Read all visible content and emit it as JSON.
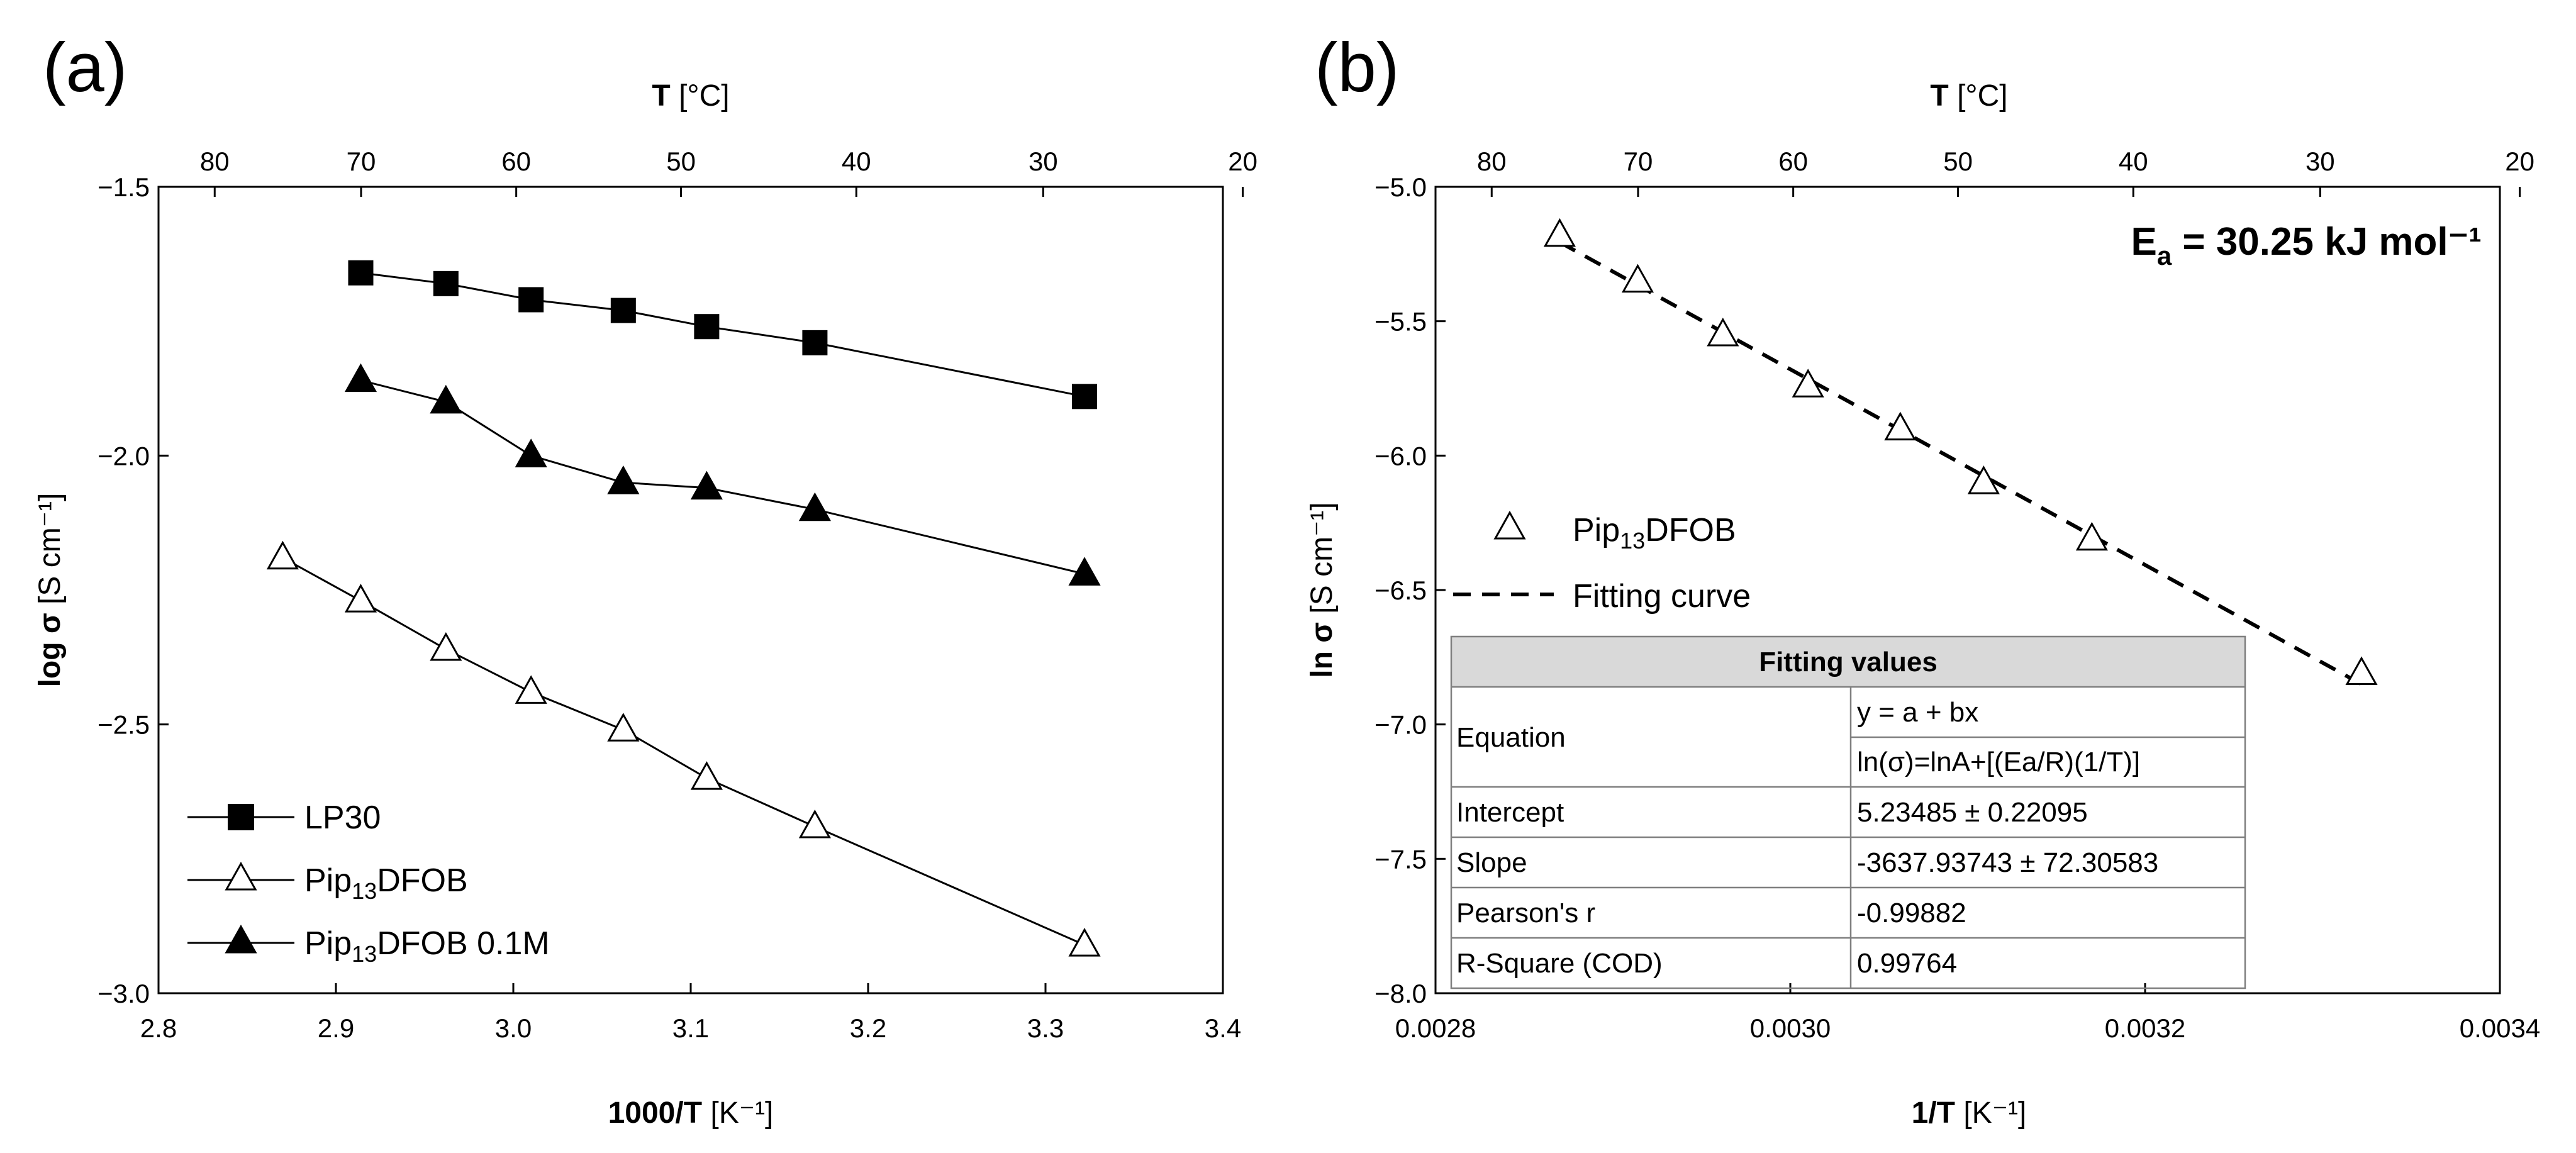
{
  "figure": {
    "panel_a_label": "(a)",
    "panel_b_label": "(b)"
  },
  "chart_data": [
    {
      "type": "line",
      "panel": "a",
      "xlabel_bold": "1000/T",
      "xlabel_unit": "[K⁻¹]",
      "ylabel_bold": "log σ",
      "ylabel_unit": "[S cm⁻¹]",
      "top_xlabel_bold": "T",
      "top_xlabel_unit": "[°C]",
      "xlim": [
        2.8,
        3.4
      ],
      "ylim": [
        -3.0,
        -1.5
      ],
      "x_ticks": [
        2.8,
        2.9,
        3.0,
        3.1,
        3.2,
        3.3,
        3.4
      ],
      "x_tick_labels": [
        "2.8",
        "2.9",
        "3.0",
        "3.1",
        "3.2",
        "3.3",
        "3.4"
      ],
      "y_ticks": [
        -3.0,
        -2.5,
        -2.0,
        -1.5
      ],
      "y_tick_labels": [
        "−3.0",
        "−2.5",
        "−2.0",
        "−1.5"
      ],
      "top_ticks_celsius": [
        80,
        70,
        60,
        50,
        40,
        30,
        20
      ],
      "top_tick_labels": [
        "80",
        "70",
        "60",
        "50",
        "40",
        "30",
        "20"
      ],
      "legend_position": "bottom-left",
      "series": [
        {
          "name": "LP30",
          "name_main": "LP30",
          "name_sub": "",
          "name_tail": "",
          "marker": "square-filled",
          "x": [
            2.914,
            2.962,
            3.01,
            3.062,
            3.109,
            3.17,
            3.322
          ],
          "y": [
            -1.66,
            -1.68,
            -1.71,
            -1.73,
            -1.76,
            -1.79,
            -1.89
          ]
        },
        {
          "name": "Pip13DFOB",
          "name_main": "Pip",
          "name_sub": "13",
          "name_tail": "DFOB",
          "marker": "triangle-open",
          "x": [
            2.87,
            2.914,
            2.962,
            3.01,
            3.062,
            3.109,
            3.17,
            3.322
          ],
          "y": [
            -2.19,
            -2.27,
            -2.36,
            -2.44,
            -2.51,
            -2.6,
            -2.69,
            -2.91
          ]
        },
        {
          "name": "Pip13DFOB 0.1M",
          "name_main": "Pip",
          "name_sub": "13",
          "name_tail": "DFOB 0.1M",
          "marker": "triangle-filled",
          "x": [
            2.914,
            2.962,
            3.01,
            3.062,
            3.109,
            3.17,
            3.322
          ],
          "y": [
            -1.86,
            -1.9,
            -2.0,
            -2.05,
            -2.06,
            -2.1,
            -2.22
          ]
        }
      ]
    },
    {
      "type": "scatter",
      "panel": "b",
      "xlabel_bold": "1/T",
      "xlabel_unit": "[K⁻¹]",
      "ylabel_bold": "ln σ",
      "ylabel_unit": "[S cm⁻¹]",
      "top_xlabel_bold": "T",
      "top_xlabel_unit": "[°C]",
      "xlim": [
        0.0028,
        0.0034
      ],
      "ylim": [
        -8.0,
        -5.0
      ],
      "x_ticks": [
        0.0028,
        0.003,
        0.0032,
        0.0034
      ],
      "x_tick_labels": [
        "0.0028",
        "0.0030",
        "0.0032",
        "0.0034"
      ],
      "y_ticks": [
        -8.0,
        -7.5,
        -7.0,
        -6.5,
        -6.0,
        -5.5,
        -5.0
      ],
      "y_tick_labels": [
        "−8.0",
        "−7.5",
        "−7.0",
        "−6.5",
        "−6.0",
        "−5.5",
        "−5.0"
      ],
      "top_ticks_celsius": [
        80,
        70,
        60,
        50,
        40,
        30,
        20
      ],
      "top_tick_labels": [
        "80",
        "70",
        "60",
        "50",
        "40",
        "30",
        "20"
      ],
      "annotation_main": "E",
      "annotation_sub": "a",
      "annotation_tail": " = 30.25 kJ mol⁻¹",
      "legend_position": "middle-left",
      "series": [
        {
          "name": "Pip13DFOB",
          "name_main": "Pip",
          "name_sub": "13",
          "name_tail": "DFOB",
          "marker": "triangle-open",
          "x": [
            0.00287,
            0.002914,
            0.002962,
            0.00301,
            0.003062,
            0.003109,
            0.00317,
            0.003322
          ],
          "y": [
            -5.18,
            -5.35,
            -5.55,
            -5.74,
            -5.9,
            -6.1,
            -6.31,
            -6.81
          ]
        }
      ],
      "fit": {
        "name": "Fitting curve",
        "intercept": 5.23485,
        "slope": -3637.93743,
        "x_range": [
          0.00287,
          0.003322
        ]
      },
      "fit_table": {
        "title": "Fitting values",
        "rows": [
          {
            "label": "Equation",
            "values": [
              "y = a + bx",
              "ln(σ)=lnA+[(Ea/R)(1/T)]"
            ]
          },
          {
            "label": "Intercept",
            "values": [
              "5.23485 ± 0.22095"
            ]
          },
          {
            "label": "Slope",
            "values": [
              "-3637.93743 ± 72.30583"
            ]
          },
          {
            "label": "Pearson's r",
            "values": [
              "-0.99882"
            ]
          },
          {
            "label": "R-Square (COD)",
            "values": [
              "0.99764"
            ]
          }
        ]
      }
    }
  ]
}
